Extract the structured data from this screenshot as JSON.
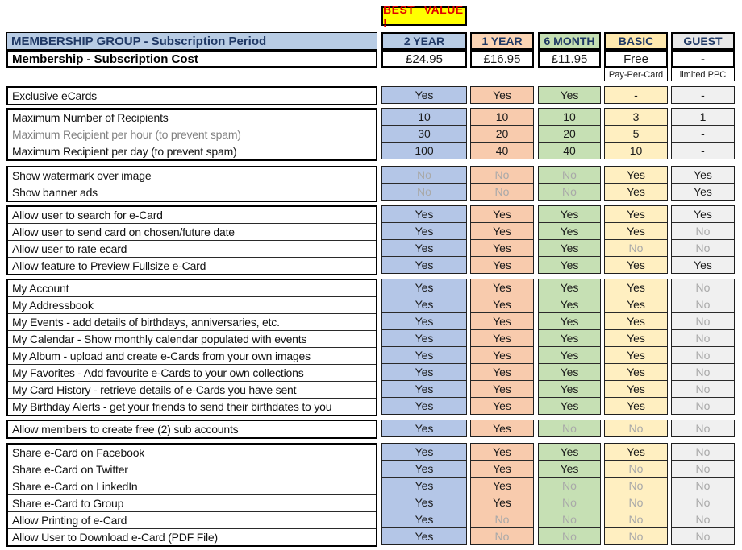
{
  "badge": {
    "label": "BEST VALUE !"
  },
  "colors": {
    "badge_bg": "#FFFF00",
    "badge_text": "#E00000",
    "header_band_bg": "#B8CCE4",
    "header_text": "#1F3864",
    "muted_text": "#A9A9A9"
  },
  "header": {
    "group_title": "MEMBERSHIP GROUP - Subscription Period",
    "cost_title": "Membership - Subscription Cost",
    "columns": [
      {
        "id": "2year",
        "label": "2 YEAR",
        "price": "£24.95",
        "sub": "",
        "header_bg": "#B8CCE4",
        "cell_bg": "#B4C6E7"
      },
      {
        "id": "1year",
        "label": "1 YEAR",
        "price": "£16.95",
        "sub": "",
        "header_bg": "#FBD5B5",
        "cell_bg": "#F8CBAD"
      },
      {
        "id": "6month",
        "label": "6 MONTH",
        "price": "£11.95",
        "sub": "",
        "header_bg": "#C5DFB3",
        "cell_bg": "#C6E0B4"
      },
      {
        "id": "basic",
        "label": "BASIC",
        "price": "Free",
        "sub": "Pay-Per-Card",
        "header_bg": "#FFE9AE",
        "cell_bg": "#FFEFC1"
      },
      {
        "id": "guest",
        "label": "GUEST",
        "price": "-",
        "sub": "limited PPC",
        "header_bg": "#E8E8E8",
        "cell_bg": "#F0F0F0"
      }
    ]
  },
  "groups": [
    {
      "rows": [
        {
          "label": "Exclusive eCards",
          "muted": false,
          "values": [
            "Yes",
            "Yes",
            "Yes",
            "-",
            "-"
          ]
        }
      ]
    },
    {
      "rows": [
        {
          "label": "Maximum Number of Recipients",
          "muted": false,
          "values": [
            "10",
            "10",
            "10",
            "3",
            "1"
          ]
        },
        {
          "label": "Maximum Recipient per hour (to prevent spam)",
          "muted": true,
          "values": [
            "30",
            "20",
            "20",
            "5",
            "-"
          ]
        },
        {
          "label": "Maximum Recipient per day (to prevent spam)",
          "muted": false,
          "values": [
            "100",
            "40",
            "40",
            "10",
            "-"
          ]
        }
      ]
    },
    {
      "rows": [
        {
          "label": "Show watermark over image",
          "muted": false,
          "values": [
            "No",
            "No",
            "No",
            "Yes",
            "Yes"
          ]
        },
        {
          "label": "Show banner ads",
          "muted": false,
          "values": [
            "No",
            "No",
            "No",
            "Yes",
            "Yes"
          ]
        }
      ]
    },
    {
      "rows": [
        {
          "label": "Allow user to search for e-Card",
          "muted": false,
          "values": [
            "Yes",
            "Yes",
            "Yes",
            "Yes",
            "Yes"
          ]
        },
        {
          "label": "Allow user to send card on chosen/future date",
          "muted": false,
          "values": [
            "Yes",
            "Yes",
            "Yes",
            "Yes",
            "No"
          ]
        },
        {
          "label": "Allow user to rate ecard",
          "muted": false,
          "values": [
            "Yes",
            "Yes",
            "Yes",
            "No",
            "No"
          ]
        },
        {
          "label": "Allow feature to Preview Fullsize e-Card",
          "muted": false,
          "values": [
            "Yes",
            "Yes",
            "Yes",
            "Yes",
            "Yes"
          ]
        }
      ]
    },
    {
      "rows": [
        {
          "label": "My Account",
          "muted": false,
          "values": [
            "Yes",
            "Yes",
            "Yes",
            "Yes",
            "No"
          ]
        },
        {
          "label": "My Addressbook",
          "muted": false,
          "values": [
            "Yes",
            "Yes",
            "Yes",
            "Yes",
            "No"
          ]
        },
        {
          "label": "My Events - add details of birthdays, anniversaries, etc.",
          "muted": false,
          "values": [
            "Yes",
            "Yes",
            "Yes",
            "Yes",
            "No"
          ]
        },
        {
          "label": "My Calendar - Show monthly calendar populated with events",
          "muted": false,
          "values": [
            "Yes",
            "Yes",
            "Yes",
            "Yes",
            "No"
          ]
        },
        {
          "label": "My Album - upload and create e-Cards from your own images",
          "muted": false,
          "values": [
            "Yes",
            "Yes",
            "Yes",
            "Yes",
            "No"
          ]
        },
        {
          "label": "My Favorites - Add favourite e-Cards to your own collections",
          "muted": false,
          "values": [
            "Yes",
            "Yes",
            "Yes",
            "Yes",
            "No"
          ]
        },
        {
          "label": "My Card History - retrieve details of e-Cards you have sent",
          "muted": false,
          "values": [
            "Yes",
            "Yes",
            "Yes",
            "Yes",
            "No"
          ]
        },
        {
          "label": "My Birthday Alerts - get your friends to send their birthdates to you",
          "muted": false,
          "values": [
            "Yes",
            "Yes",
            "Yes",
            "Yes",
            "No"
          ]
        }
      ]
    },
    {
      "rows": [
        {
          "label": "Allow members to create free (2) sub accounts",
          "muted": false,
          "values": [
            "Yes",
            "Yes",
            "No",
            "No",
            "No"
          ]
        }
      ]
    },
    {
      "rows": [
        {
          "label": "Share e-Card on Facebook",
          "muted": false,
          "values": [
            "Yes",
            "Yes",
            "Yes",
            "Yes",
            "No"
          ]
        },
        {
          "label": "Share e-Card on Twitter",
          "muted": false,
          "values": [
            "Yes",
            "Yes",
            "Yes",
            "No",
            "No"
          ]
        },
        {
          "label": "Share e-Card on LinkedIn",
          "muted": false,
          "values": [
            "Yes",
            "Yes",
            "No",
            "No",
            "No"
          ]
        },
        {
          "label": "Share e-Card to Group",
          "muted": false,
          "values": [
            "Yes",
            "Yes",
            "No",
            "No",
            "No"
          ]
        },
        {
          "label": "Allow Printing of e-Card",
          "muted": false,
          "values": [
            "Yes",
            "No",
            "No",
            "No",
            "No"
          ]
        },
        {
          "label": "Allow User to Download e-Card (PDF File)",
          "muted": false,
          "values": [
            "Yes",
            "No",
            "No",
            "No",
            "No"
          ]
        }
      ]
    }
  ]
}
